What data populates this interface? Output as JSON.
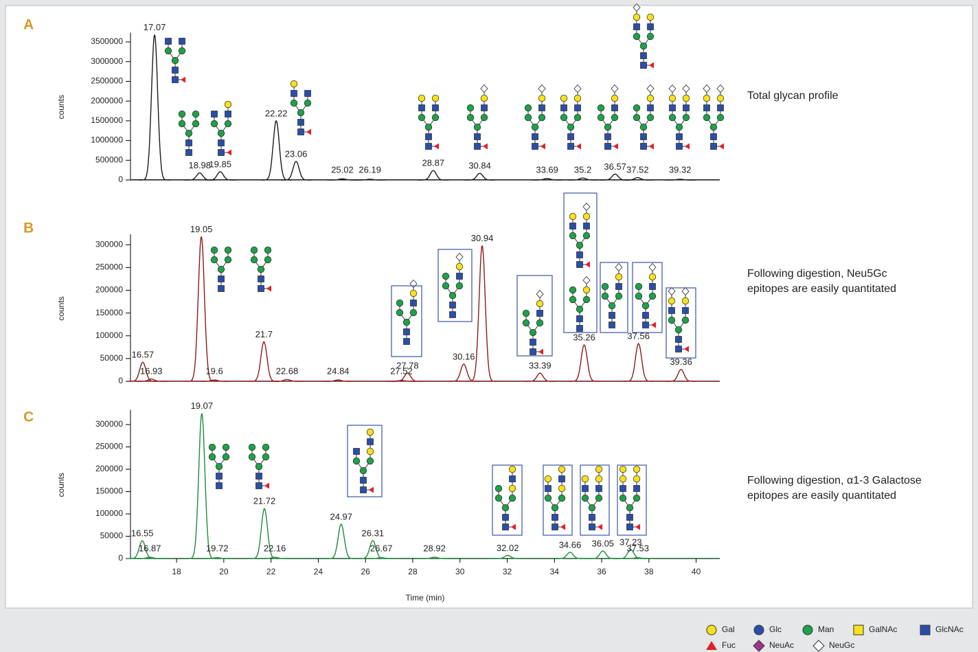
{
  "chart_data": [
    {
      "type": "chromatogram",
      "panel": "A",
      "ylabel": "counts",
      "annotation": [
        "Total glycan profile"
      ],
      "color": "#1a1a1a",
      "xlim": [
        16.05,
        41
      ],
      "ylim": [
        0,
        3700000
      ],
      "yticks": [
        0,
        500000,
        1000000,
        1500000,
        2000000,
        2500000,
        3000000,
        3500000
      ],
      "peaks": {
        "x": [
          17.07,
          18.98,
          19.85,
          22.22,
          23.06,
          25.02,
          26.19,
          28.87,
          30.84,
          33.69,
          35.2,
          36.57,
          37.52,
          39.32
        ],
        "values": [
          3680000,
          180000,
          210000,
          1500000,
          470000,
          30000,
          20000,
          240000,
          170000,
          40000,
          50000,
          150000,
          60000,
          20000
        ]
      }
    },
    {
      "type": "chromatogram",
      "panel": "B",
      "ylabel": "counts",
      "annotation": [
        "Following digestion, Neu5Gc",
        "epitopes are easily quantitated"
      ],
      "color": "#8b1a1a",
      "xlim": [
        16.05,
        41
      ],
      "ylim": [
        0,
        320000
      ],
      "yticks": [
        0,
        50000,
        100000,
        150000,
        200000,
        250000,
        300000
      ],
      "peaks": {
        "x": [
          16.57,
          16.93,
          19.05,
          19.6,
          21.7,
          22.68,
          24.84,
          27.52,
          27.78,
          30.16,
          30.94,
          33.39,
          35.26,
          37.56,
          39.36
        ],
        "values": [
          42000,
          5000,
          318000,
          3000,
          87000,
          4000,
          3000,
          2000,
          18000,
          38000,
          298000,
          18000,
          80000,
          83000,
          26000
        ]
      }
    },
    {
      "type": "chromatogram",
      "panel": "C",
      "ylabel": "counts",
      "xlabel": "Time (min)",
      "annotation": [
        "Following digestion, α1-3 Galactose",
        "epitopes are easily quantitated"
      ],
      "color": "#1e8a3c",
      "xlim": [
        16.05,
        41
      ],
      "ylim": [
        0,
        330000
      ],
      "yticks": [
        0,
        50000,
        100000,
        150000,
        200000,
        250000,
        300000
      ],
      "xticks": [
        18,
        20,
        22,
        24,
        26,
        28,
        30,
        32,
        34,
        36,
        38,
        40
      ],
      "peaks": {
        "x": [
          16.55,
          16.87,
          19.07,
          19.72,
          21.72,
          22.16,
          24.97,
          26.31,
          26.67,
          28.92,
          32.02,
          34.66,
          36.05,
          37.23,
          37.53
        ],
        "values": [
          40000,
          3000,
          325000,
          2000,
          112000,
          3000,
          77000,
          40000,
          2000,
          3000,
          7000,
          14000,
          17000,
          20000,
          2000
        ]
      }
    }
  ],
  "legend": [
    {
      "label": "Gal",
      "shape": "circle",
      "color": "#f7e11b"
    },
    {
      "label": "Glc",
      "shape": "circle",
      "color": "#2a4fa8"
    },
    {
      "label": "Man",
      "shape": "circle",
      "color": "#1fa14a"
    },
    {
      "label": "GalNAc",
      "shape": "square",
      "color": "#f7e11b"
    },
    {
      "label": "GlcNAc",
      "shape": "square",
      "color": "#2a4fa8"
    },
    {
      "label": "Fuc",
      "shape": "triangle",
      "color": "#e0202a"
    },
    {
      "label": "NeuAc",
      "shape": "diamond",
      "color": "#a0358f"
    },
    {
      "label": "NeuGc",
      "shape": "diamond",
      "color": "#ffffff"
    }
  ]
}
